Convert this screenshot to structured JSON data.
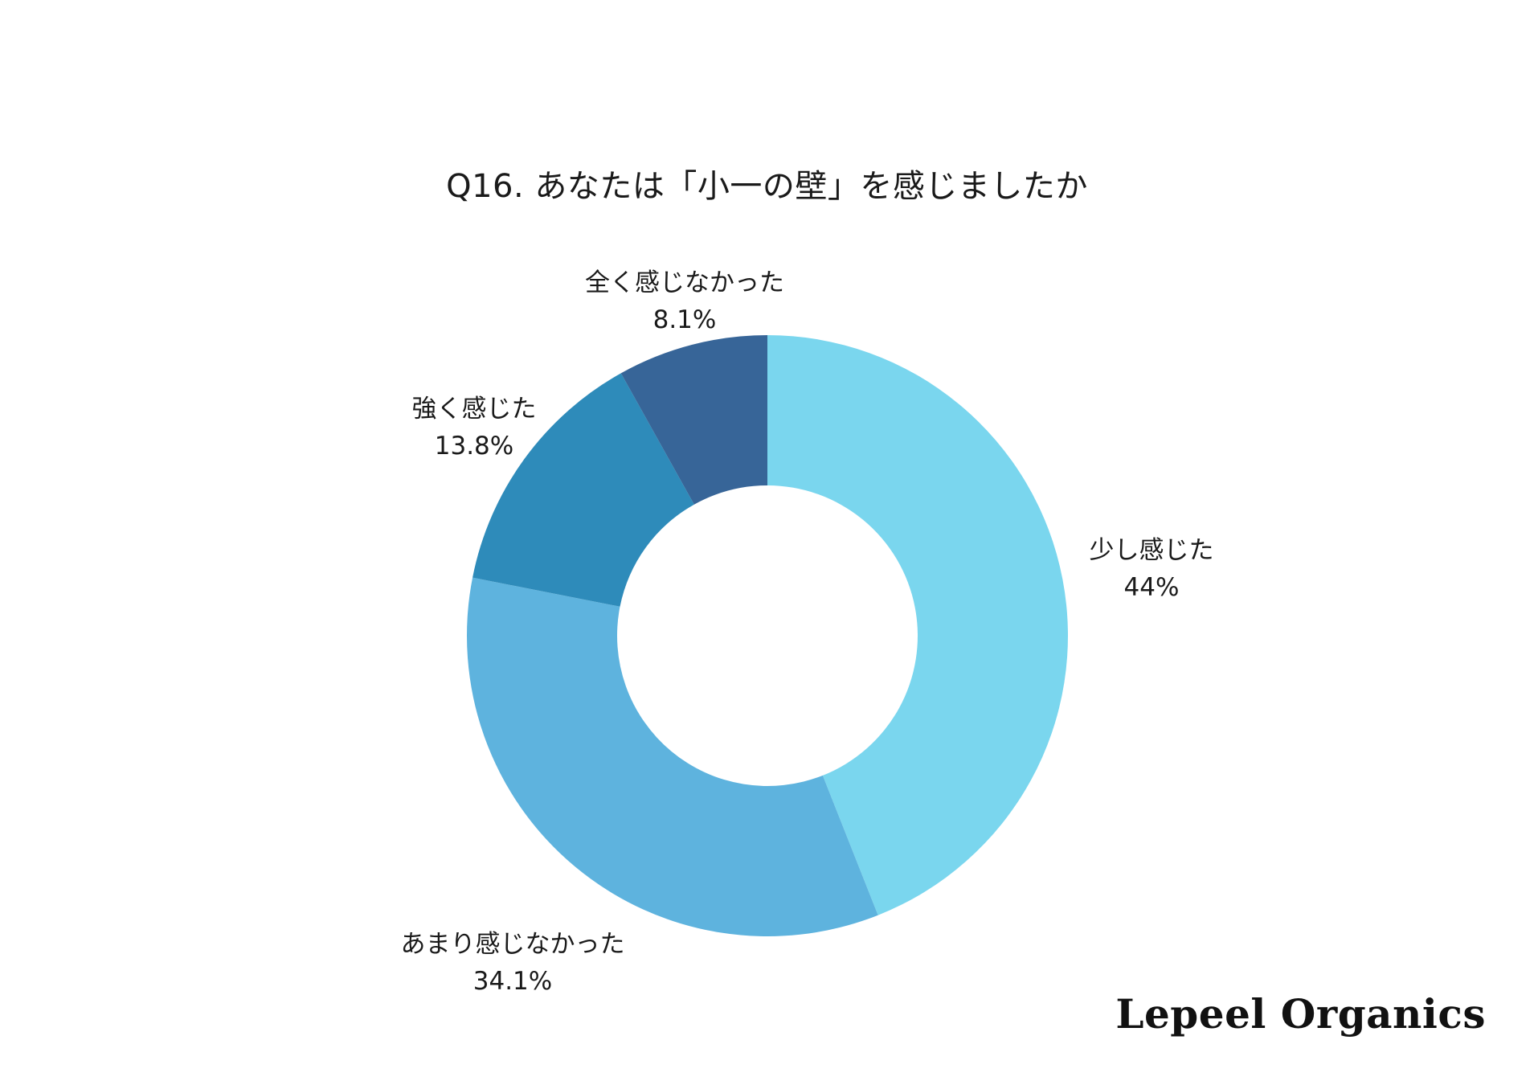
{
  "chart_data": {
    "type": "pie",
    "variant": "donut",
    "title": "Q16. あなたは「小一の壁」を感じましたか",
    "categories": [
      "少し感じた",
      "あまり感じなかった",
      "強く感じた",
      "全く感じなかった"
    ],
    "values": [
      44,
      34.1,
      13.8,
      8.1
    ],
    "value_labels": [
      "44%",
      "34.1%",
      "13.8%",
      "8.1%"
    ],
    "colors": [
      "#7AD6EE",
      "#5EB3DE",
      "#2E8BBA",
      "#376598"
    ],
    "start_angle_deg": 0,
    "direction": "clockwise",
    "legend": "none (labels outside slices)"
  },
  "header": {
    "title": "Q16. あなたは「小一の壁」を感じましたか"
  },
  "labels": [
    {
      "name": "少し感じた",
      "pct": "44%"
    },
    {
      "name": "あまり感じなかった",
      "pct": "34.1%"
    },
    {
      "name": "強く感じた",
      "pct": "13.8%"
    },
    {
      "name": "全く感じなかった",
      "pct": "8.1%"
    }
  ],
  "brand": {
    "logo_text": "Lepeel Organics"
  }
}
